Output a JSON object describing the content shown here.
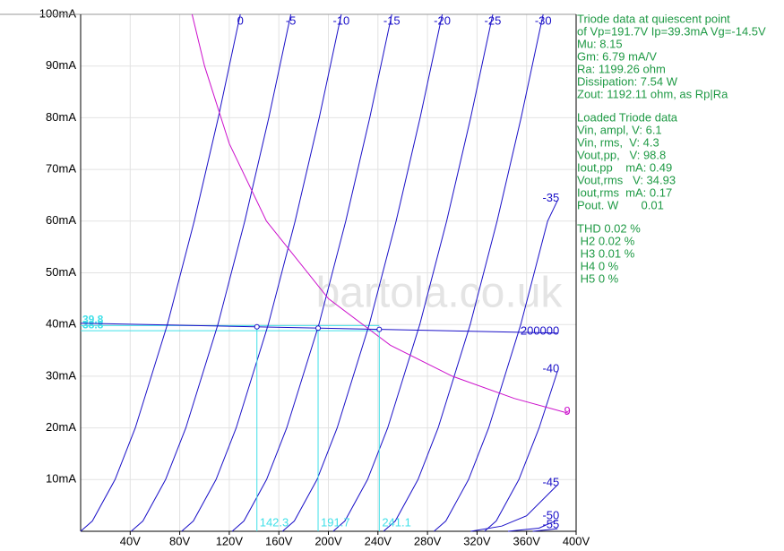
{
  "chart_data": {
    "type": "line",
    "xlim": [
      0,
      400
    ],
    "ylim": [
      0,
      100
    ],
    "xticks": [
      {
        "value": 40,
        "label": "40V"
      },
      {
        "value": 80,
        "label": "80V"
      },
      {
        "value": 120,
        "label": "120V"
      },
      {
        "value": 160,
        "label": "160V"
      },
      {
        "value": 200,
        "label": "200V"
      },
      {
        "value": 240,
        "label": "240V"
      },
      {
        "value": 280,
        "label": "280V"
      },
      {
        "value": 320,
        "label": "320V"
      },
      {
        "value": 360,
        "label": "360V"
      },
      {
        "value": 400,
        "label": "400V"
      }
    ],
    "yticks": [
      {
        "value": 10,
        "label": "10mA"
      },
      {
        "value": 20,
        "label": "20mA"
      },
      {
        "value": 30,
        "label": "30mA"
      },
      {
        "value": 40,
        "label": "40mA"
      },
      {
        "value": 50,
        "label": "50mA"
      },
      {
        "value": 60,
        "label": "60mA"
      },
      {
        "value": 70,
        "label": "70mA"
      },
      {
        "value": 80,
        "label": "80mA"
      },
      {
        "value": 90,
        "label": "90mA"
      },
      {
        "value": 100,
        "label": "100mA"
      }
    ],
    "grid": true,
    "series": [
      {
        "name": "0",
        "color": "#1a10c8",
        "x": [
          0,
          9.5,
          27.8,
          44.1,
          70,
          91.7,
          111.1,
          128.9
        ],
        "values": [
          0,
          2,
          10,
          20,
          40,
          60,
          80,
          100
        ]
      },
      {
        "name": "-5",
        "color": "#1a10c8",
        "x": [
          40.8,
          50.3,
          68.6,
          84.9,
          110.8,
          132.5,
          151.9,
          169.7
        ],
        "values": [
          0,
          2,
          10,
          20,
          40,
          60,
          80,
          100
        ]
      },
      {
        "name": "-10",
        "color": "#1a10c8",
        "x": [
          81.5,
          91,
          109.3,
          125.6,
          151.5,
          173.2,
          192.6,
          210.4
        ],
        "values": [
          0,
          2,
          10,
          20,
          40,
          60,
          80,
          100
        ]
      },
      {
        "name": "-15",
        "color": "#1a10c8",
        "x": [
          122.3,
          131.8,
          150.1,
          166.4,
          192.3,
          214,
          233.4,
          251.2
        ],
        "values": [
          0,
          2,
          10,
          20,
          40,
          60,
          80,
          100
        ]
      },
      {
        "name": "-20",
        "color": "#1a10c8",
        "x": [
          163,
          172.5,
          190.8,
          207.1,
          233,
          254.7,
          274.1,
          291.9
        ],
        "values": [
          0,
          2,
          10,
          20,
          40,
          60,
          80,
          100
        ]
      },
      {
        "name": "-25",
        "color": "#1a10c8",
        "x": [
          203.8,
          213.3,
          231.6,
          247.9,
          273.8,
          295.5,
          314.9,
          332.7
        ],
        "values": [
          0,
          2,
          10,
          20,
          40,
          60,
          80,
          100
        ]
      },
      {
        "name": "-30",
        "color": "#1a10c8",
        "x": [
          244.5,
          254,
          272.3,
          288.6,
          314.5,
          336.2,
          355.6,
          373.4
        ],
        "values": [
          0,
          2,
          10,
          20,
          40,
          60,
          80,
          100
        ]
      },
      {
        "name": "-35",
        "color": "#1a10c8",
        "x": [
          285.3,
          294.8,
          313.1,
          329.4,
          355.3,
          377,
          385
        ],
        "values": [
          0,
          2,
          10,
          20,
          40,
          60,
          64
        ]
      },
      {
        "name": "-40",
        "color": "#1a10c8",
        "x": [
          326,
          335.5,
          353.8,
          370.1,
          385
        ],
        "values": [
          0,
          2,
          10,
          20,
          31
        ]
      },
      {
        "name": "-45",
        "color": "#1a10c8",
        "x": [
          315,
          340,
          360,
          385
        ],
        "values": [
          0,
          1,
          3,
          9
        ]
      },
      {
        "name": "-50",
        "color": "#1a10c8",
        "x": [
          345,
          370,
          385
        ],
        "values": [
          0,
          0.6,
          2.2
        ]
      },
      {
        "name": "-55",
        "color": "#1a10c8",
        "x": [
          365,
          385
        ],
        "values": [
          0,
          0.5
        ]
      },
      {
        "name": "9",
        "color": "#cc10cc",
        "x": [
          90,
          100,
          120,
          150,
          200,
          250,
          300,
          350,
          394
        ],
        "values": [
          100,
          90,
          75,
          60,
          45,
          36,
          30,
          25.7,
          22.8
        ]
      },
      {
        "name": "200000",
        "color": "#1a10c8",
        "x": [
          0,
          385
        ],
        "values": [
          40.26,
          38.33
        ]
      }
    ],
    "operating_points": {
      "color": "#40e0e8",
      "x": [
        142.3,
        191.7,
        241.1
      ],
      "values": [
        39.55,
        39.3,
        39.05
      ]
    },
    "current_levels": [
      39.8,
      38.8
    ],
    "watermark": "bartola.co.uk",
    "panel": {
      "color": "#1f9a45",
      "groups": [
        [
          "Triode data at quiescent point",
          "of Vp=191.7V Ip=39.3mA Vg=-14.5V",
          "Mu: 8.15",
          "Gm: 6.79 mA/V",
          "Ra: 1199.26 ohm",
          "Dissipation: 7.54 W",
          "Zout: 1192.11 ohm, as Rp|Ra"
        ],
        [
          "Loaded Triode data",
          "Vin, ampl, V: 6.1",
          "Vin, rms,  V: 4.3",
          "Vout,pp,   V: 98.8",
          "Iout,pp    mA: 0.49",
          "Vout,rms   V: 34.93",
          "Iout,rms  mA: 0.17",
          "Pout. W       0.01"
        ],
        [
          "THD 0.02 %",
          " H2 0.02 %",
          " H3 0.01 %",
          " H4 0 %",
          " H5 0 %"
        ]
      ]
    }
  }
}
